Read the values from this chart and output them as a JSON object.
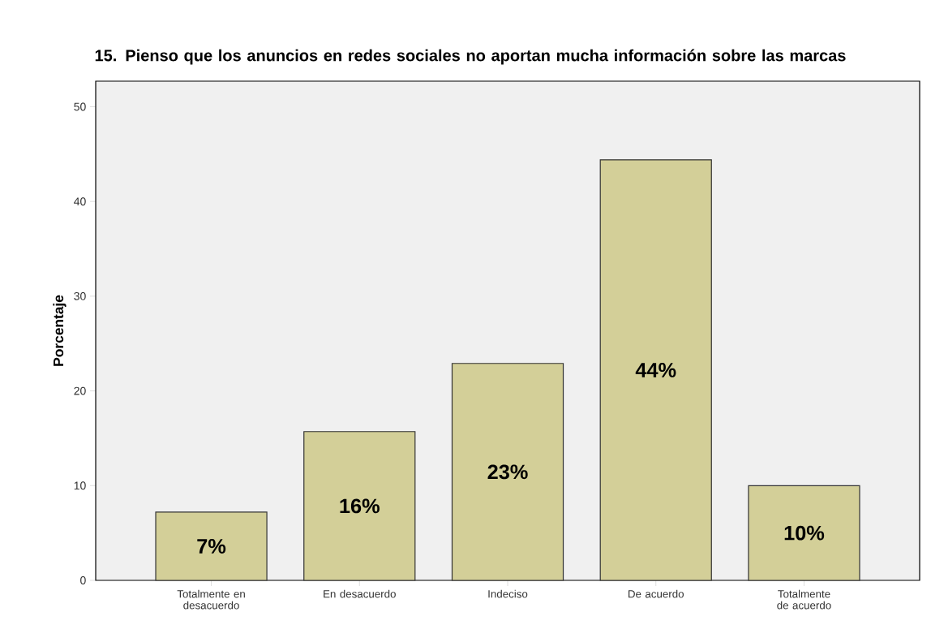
{
  "chart_data": {
    "type": "bar",
    "title": "15. Pienso que los anuncios en redes sociales no aportan mucha información sobre las marcas",
    "ylabel": "Porcentaje",
    "categories": [
      "Totalmente en desacuerdo",
      "En desacuerdo",
      "Indeciso",
      "De acuerdo",
      "Totalmente de acuerdo"
    ],
    "values": [
      7.2,
      15.7,
      22.9,
      44.4,
      10.0
    ],
    "value_labels": [
      "7%",
      "16%",
      "23%",
      "44%",
      "10%"
    ],
    "color": "#d3cf98",
    "ylim": [
      0,
      52.7
    ],
    "yticks": [
      0,
      10,
      20,
      30,
      40,
      50
    ]
  }
}
